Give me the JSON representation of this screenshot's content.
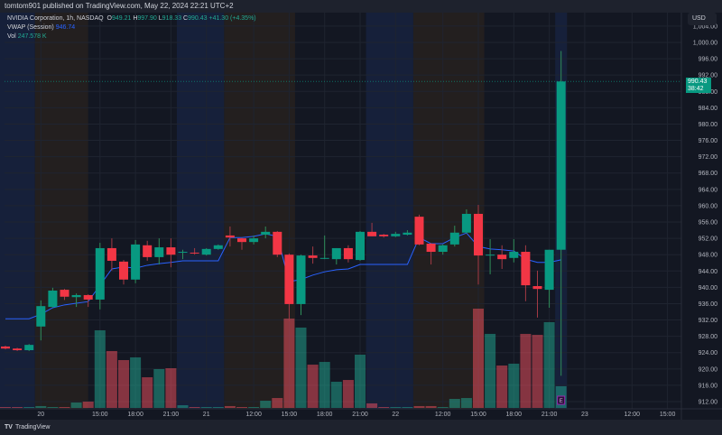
{
  "header": {
    "published": "tomtom901 published on TradingView.com, May 22, 2024 22:21 UTC+2"
  },
  "legend": {
    "symbol": "NVIDIA Corporation, 1h, NASDAQ",
    "o_label": "O",
    "o": "949.21",
    "h_label": "H",
    "h": "997.90",
    "l_label": "L",
    "l": "918.33",
    "c_label": "C",
    "c": "990.43",
    "change": "+41.30 (+4.35%)",
    "vwap_label": "VWAP (Session)",
    "vwap": "946.74",
    "vol_label": "Vol",
    "vol": "247.578 K"
  },
  "price_axis": {
    "currency": "USD",
    "labels": [
      "1,004.00",
      "1,000.00",
      "996.00",
      "992.00",
      "988.00",
      "984.00",
      "980.00",
      "976.00",
      "972.00",
      "968.00",
      "964.00",
      "960.00",
      "956.00",
      "952.00",
      "948.00",
      "944.00",
      "940.00",
      "936.00",
      "932.00",
      "928.00",
      "924.00",
      "920.00",
      "916.00",
      "912.00"
    ],
    "last_price": "990.43",
    "countdown": "38:42"
  },
  "footer": {
    "logo": "TV",
    "brand": "TradingView"
  },
  "colors": {
    "up": "#089981",
    "down": "#f23645",
    "vwap": "#2962ff",
    "bg": "#131722"
  },
  "earnings_marker": "E",
  "chart_data": {
    "type": "candlestick",
    "ylim": [
      910,
      1006
    ],
    "grid": true,
    "candles": [
      [
        925.5,
        925.7,
        924.8,
        925.0
      ],
      [
        925.0,
        925.2,
        924.4,
        924.6
      ],
      [
        924.6,
        926.1,
        924.4,
        925.9
      ],
      [
        930.4,
        936.8,
        927.0,
        935.4
      ],
      [
        935.2,
        939.9,
        935.0,
        939.2
      ],
      [
        939.4,
        939.6,
        936.9,
        937.7
      ],
      [
        937.6,
        938.5,
        935.2,
        938.1
      ],
      [
        938.1,
        938.3,
        935.2,
        937.0
      ],
      [
        937.0,
        950.9,
        934.6,
        949.6
      ],
      [
        949.6,
        952.0,
        944.1,
        946.5
      ],
      [
        946.3,
        946.7,
        940.7,
        941.9
      ],
      [
        941.9,
        951.6,
        941.0,
        950.5
      ],
      [
        950.3,
        951.4,
        946.5,
        947.4
      ],
      [
        947.4,
        952.0,
        945.6,
        949.8
      ],
      [
        949.8,
        952.0,
        944.9,
        948.0
      ],
      [
        948.5,
        949.2,
        946.9,
        948.7
      ],
      [
        948.5,
        949.6,
        948.0,
        948.3
      ],
      [
        948.0,
        949.6,
        947.8,
        949.4
      ],
      [
        949.4,
        950.5,
        949.2,
        950.3
      ],
      [
        952.7,
        954.9,
        950.0,
        952.2
      ],
      [
        952.0,
        952.2,
        949.2,
        951.1
      ],
      [
        951.1,
        952.7,
        950.5,
        952.0
      ],
      [
        952.9,
        954.9,
        952.0,
        953.6
      ],
      [
        953.6,
        953.8,
        947.4,
        948.0
      ],
      [
        948.0,
        948.3,
        931.7,
        935.9
      ],
      [
        935.9,
        948.0,
        933.2,
        947.8
      ],
      [
        947.8,
        950.0,
        945.8,
        947.2
      ],
      [
        947.0,
        952.7,
        946.9,
        947.2
      ],
      [
        946.9,
        949.6,
        945.6,
        949.6
      ],
      [
        949.6,
        950.3,
        946.1,
        946.9
      ],
      [
        946.7,
        953.8,
        946.5,
        953.6
      ],
      [
        953.6,
        955.8,
        952.5,
        952.5
      ],
      [
        952.9,
        953.1,
        952.2,
        952.5
      ],
      [
        952.5,
        953.6,
        952.3,
        953.1
      ],
      [
        952.9,
        954.0,
        952.7,
        953.4
      ],
      [
        957.3,
        957.8,
        950.3,
        950.5
      ],
      [
        950.7,
        950.9,
        945.6,
        948.7
      ],
      [
        948.7,
        950.5,
        948.0,
        950.3
      ],
      [
        950.5,
        955.1,
        950.0,
        953.4
      ],
      [
        953.4,
        959.1,
        953.2,
        958.0
      ],
      [
        958.0,
        960.2,
        940.7,
        947.8
      ],
      [
        947.8,
        951.8,
        943.2,
        948.0
      ],
      [
        948.0,
        950.3,
        944.5,
        946.9
      ],
      [
        947.2,
        951.8,
        946.1,
        948.7
      ],
      [
        948.7,
        950.3,
        936.6,
        940.5
      ],
      [
        940.3,
        944.1,
        932.6,
        939.6
      ],
      [
        939.4,
        949.2,
        935.0,
        949.2
      ],
      [
        949.21,
        997.9,
        918.33,
        990.43
      ]
    ],
    "volume_k": [
      10,
      10,
      10,
      21,
      10,
      10,
      62,
      72,
      886,
      649,
      546,
      577,
      350,
      443,
      453,
      31,
      10,
      5,
      10,
      21,
      10,
      10,
      82,
      113,
      1020,
      917,
      494,
      525,
      299,
      319,
      608,
      52,
      10,
      10,
      10,
      21,
      21,
      10,
      103,
      113,
      1133,
      845,
      484,
      505,
      845,
      834,
      979,
      247.578
    ],
    "vwap": [
      932.3,
      932.3,
      932.3,
      933.4,
      935.0,
      935.7,
      936.1,
      936.5,
      940.5,
      944.5,
      945.0,
      944.7,
      945.4,
      945.8,
      946.1,
      946.5,
      946.5,
      946.5,
      946.5,
      952.2,
      952.2,
      952.5,
      953.1,
      952.5,
      941.4,
      941.9,
      943.0,
      943.8,
      944.3,
      944.5,
      945.6,
      945.6,
      945.6,
      945.6,
      945.6,
      952.2,
      950.7,
      950.7,
      952.2,
      953.3,
      950.0,
      949.4,
      949.2,
      948.9,
      946.9,
      946.1,
      946.1,
      946.74
    ],
    "x_ticks": [
      {
        "bar": 3,
        "label": "20"
      },
      {
        "bar": 8,
        "label": "15:00"
      },
      {
        "bar": 11,
        "label": "18:00"
      },
      {
        "bar": 14,
        "label": "21:00"
      },
      {
        "bar": 17,
        "label": "21"
      },
      {
        "bar": 21,
        "label": "12:00"
      },
      {
        "bar": 24,
        "label": "15:00"
      },
      {
        "bar": 27,
        "label": "18:00"
      },
      {
        "bar": 30,
        "label": "21:00"
      },
      {
        "bar": 33,
        "label": "22"
      },
      {
        "bar": 37,
        "label": "12:00"
      },
      {
        "bar": 40,
        "label": "15:00"
      },
      {
        "bar": 43,
        "label": "18:00"
      },
      {
        "bar": 46,
        "label": "21:00"
      },
      {
        "bar": 49,
        "label": "23"
      },
      {
        "bar": 53,
        "label": "12:00"
      },
      {
        "bar": 56,
        "label": "15:00"
      }
    ],
    "sessions": [
      {
        "from": -0.5,
        "to": 2.5,
        "kind": "pre"
      },
      {
        "from": 2.5,
        "to": 7,
        "kind": "post"
      },
      {
        "from": 14.5,
        "to": 18.5,
        "kind": "pre"
      },
      {
        "from": 18.5,
        "to": 24.5,
        "kind": "post"
      },
      {
        "from": 30.5,
        "to": 34.5,
        "kind": "pre"
      },
      {
        "from": 34.5,
        "to": 40.5,
        "kind": "post"
      },
      {
        "from": 46.5,
        "to": 47.5,
        "kind": "pre"
      }
    ]
  }
}
